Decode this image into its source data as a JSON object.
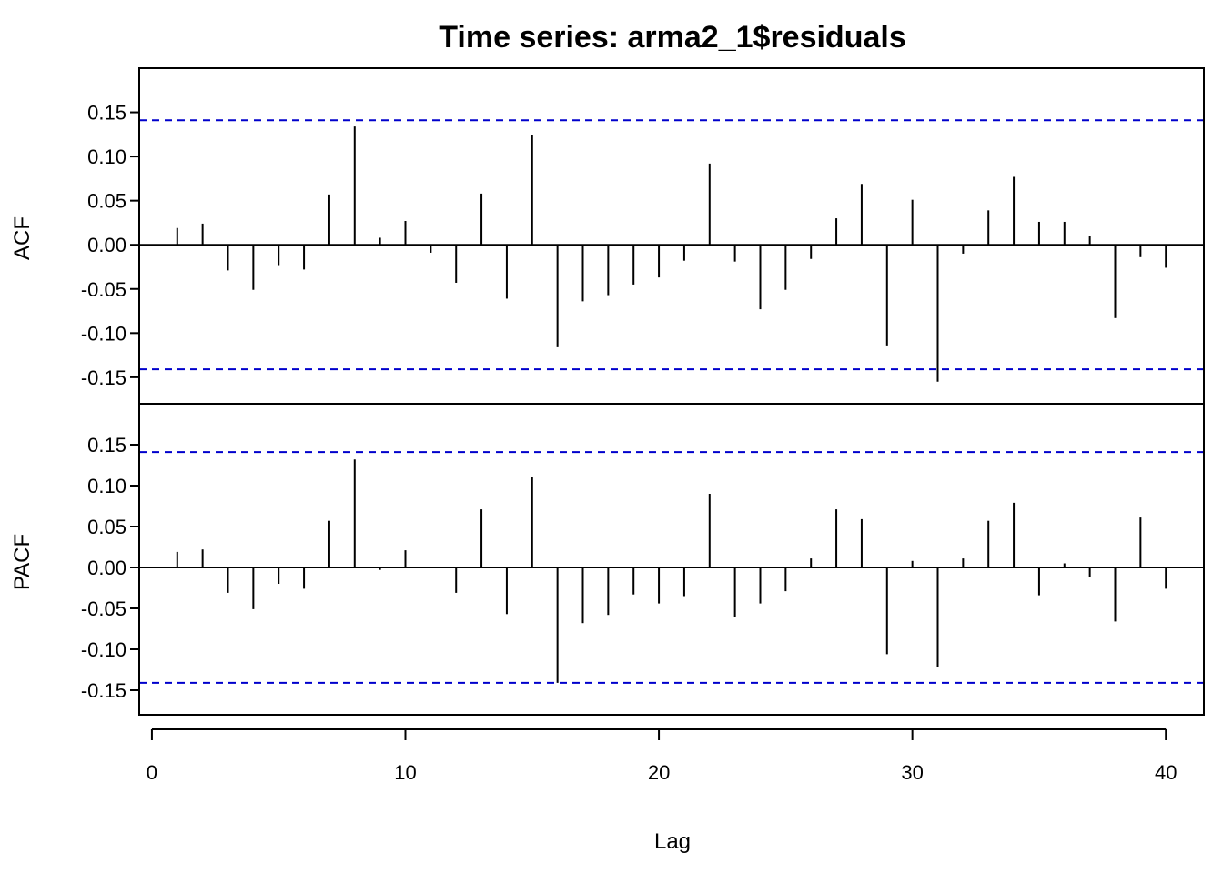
{
  "chart_data": [
    {
      "type": "bar",
      "panel": "top",
      "ylabel": "ACF",
      "title": "Time series:  arma2_1$residuals",
      "xlabel": "",
      "xlim": [
        -0.5,
        41.5
      ],
      "ylim": [
        -0.18,
        0.2
      ],
      "yticks": [
        0.15,
        0.1,
        0.05,
        0.0,
        -0.05,
        -0.1,
        -0.15
      ],
      "ytick_labels": [
        "0.15",
        "0.10",
        "0.05",
        "0.00",
        "-0.05",
        "-0.10",
        "-0.15"
      ],
      "significance_bounds": [
        0.141,
        -0.141
      ],
      "bound_color": "#0000cc",
      "lags": [
        1,
        2,
        3,
        4,
        5,
        6,
        7,
        8,
        9,
        10,
        11,
        12,
        13,
        14,
        15,
        16,
        17,
        18,
        19,
        20,
        21,
        22,
        23,
        24,
        25,
        26,
        27,
        28,
        29,
        30,
        31,
        32,
        33,
        34,
        35,
        36,
        37,
        38,
        39,
        40
      ],
      "values": [
        0.019,
        0.024,
        -0.029,
        -0.051,
        -0.023,
        -0.028,
        0.057,
        0.134,
        0.008,
        0.027,
        -0.009,
        -0.043,
        0.058,
        -0.061,
        0.124,
        -0.116,
        -0.064,
        -0.057,
        -0.045,
        -0.037,
        -0.018,
        0.092,
        -0.019,
        -0.073,
        -0.051,
        -0.016,
        0.03,
        0.069,
        -0.114,
        0.051,
        -0.155,
        -0.01,
        0.039,
        0.077,
        0.026,
        0.026,
        0.01,
        -0.083,
        -0.014,
        -0.026
      ]
    },
    {
      "type": "bar",
      "panel": "bottom",
      "ylabel": "PACF",
      "xlabel": "Lag",
      "xlim": [
        -0.5,
        41.5
      ],
      "ylim": [
        -0.18,
        0.2
      ],
      "yticks": [
        0.15,
        0.1,
        0.05,
        0.0,
        -0.05,
        -0.1,
        -0.15
      ],
      "ytick_labels": [
        "0.15",
        "0.10",
        "0.05",
        "0.00",
        "-0.05",
        "-0.10",
        "-0.15"
      ],
      "xticks": [
        0,
        10,
        20,
        30,
        40
      ],
      "xtick_labels": [
        "0",
        "10",
        "20",
        "30",
        "40"
      ],
      "significance_bounds": [
        0.141,
        -0.141
      ],
      "bound_color": "#0000cc",
      "lags": [
        1,
        2,
        3,
        4,
        5,
        6,
        7,
        8,
        9,
        10,
        11,
        12,
        13,
        14,
        15,
        16,
        17,
        18,
        19,
        20,
        21,
        22,
        23,
        24,
        25,
        26,
        27,
        28,
        29,
        30,
        31,
        32,
        33,
        34,
        35,
        36,
        37,
        38,
        39,
        40
      ],
      "values": [
        0.019,
        0.022,
        -0.031,
        -0.051,
        -0.02,
        -0.026,
        0.057,
        0.132,
        -0.003,
        0.021,
        0.0,
        -0.031,
        0.071,
        -0.057,
        0.11,
        -0.141,
        -0.068,
        -0.058,
        -0.033,
        -0.044,
        -0.035,
        0.09,
        -0.06,
        -0.044,
        -0.029,
        0.011,
        0.071,
        0.059,
        -0.106,
        0.008,
        -0.122,
        0.011,
        0.057,
        0.079,
        -0.034,
        0.005,
        -0.012,
        -0.066,
        0.061,
        -0.026
      ]
    }
  ]
}
